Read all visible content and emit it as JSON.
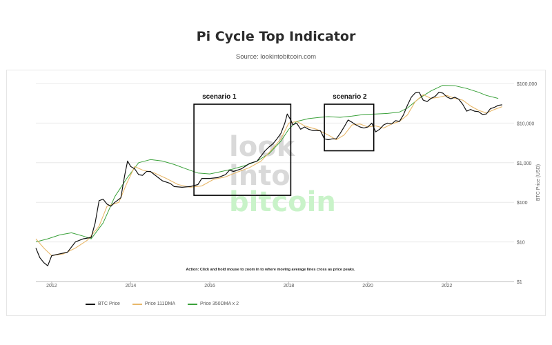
{
  "header": {
    "title": "Pi Cycle Top Indicator",
    "subtitle": "Source: lookintobitcoin.com"
  },
  "watermark": {
    "line1": "look",
    "line2": "into",
    "line3": "bitcoin"
  },
  "annotation": "Action: Click and hold mouse to zoom in to where moving average lines cross as price peaks.",
  "legend": {
    "btc": "BTC Price",
    "ma111": "Price 111DMA",
    "ma350": "Price 350DMA x 2"
  },
  "colors": {
    "btc": "#111111",
    "ma111": "#e8b86a",
    "ma350": "#3aa13a",
    "grid": "#e8e8e8",
    "watermark_grey": "#d9d9d9",
    "watermark_green": "#c9f3c9"
  },
  "chart_data": {
    "type": "line",
    "title": "Pi Cycle Top Indicator",
    "ylabel": "BTC Price (USD)",
    "xlabel": "",
    "yscale": "log",
    "xlim": [
      2011.6,
      2023.7
    ],
    "ylim": [
      1,
      100000
    ],
    "x_ticks": [
      2012,
      2014,
      2016,
      2018,
      2020,
      2022
    ],
    "y_ticks": [
      {
        "value": 1,
        "label": "$1"
      },
      {
        "value": 10,
        "label": "$10"
      },
      {
        "value": 100,
        "label": "$100"
      },
      {
        "value": 1000,
        "label": "$1,000"
      },
      {
        "value": 10000,
        "label": "$10,000"
      },
      {
        "value": 100000,
        "label": "$100,000"
      }
    ],
    "grid": true,
    "legend_position": "bottom-left",
    "series": [
      {
        "name": "BTC Price",
        "x": [
          2011.6,
          2011.7,
          2011.8,
          2011.9,
          2012.0,
          2012.2,
          2012.4,
          2012.6,
          2012.8,
          2013.0,
          2013.1,
          2013.2,
          2013.3,
          2013.4,
          2013.5,
          2013.6,
          2013.75,
          2013.85,
          2013.92,
          2014.0,
          2014.1,
          2014.2,
          2014.3,
          2014.4,
          2014.5,
          2014.6,
          2014.8,
          2015.0,
          2015.1,
          2015.3,
          2015.5,
          2015.7,
          2015.8,
          2016.0,
          2016.2,
          2016.4,
          2016.5,
          2016.6,
          2016.8,
          2017.0,
          2017.2,
          2017.4,
          2017.5,
          2017.6,
          2017.7,
          2017.8,
          2017.9,
          2017.96,
          2018.05,
          2018.1,
          2018.2,
          2018.3,
          2018.4,
          2018.5,
          2018.6,
          2018.7,
          2018.8,
          2018.9,
          2019.0,
          2019.1,
          2019.2,
          2019.3,
          2019.4,
          2019.5,
          2019.6,
          2019.7,
          2019.8,
          2019.9,
          2020.0,
          2020.1,
          2020.2,
          2020.3,
          2020.4,
          2020.5,
          2020.6,
          2020.7,
          2020.8,
          2020.9,
          2021.0,
          2021.1,
          2021.2,
          2021.3,
          2021.4,
          2021.5,
          2021.6,
          2021.7,
          2021.8,
          2021.9,
          2022.0,
          2022.1,
          2022.2,
          2022.3,
          2022.4,
          2022.5,
          2022.6,
          2022.7,
          2022.8,
          2022.9,
          2023.0,
          2023.1,
          2023.2,
          2023.3,
          2023.4
        ],
        "values": [
          7,
          4,
          3,
          2.5,
          4.5,
          5,
          5.5,
          10,
          12,
          13,
          30,
          110,
          120,
          90,
          80,
          100,
          130,
          500,
          1100,
          800,
          700,
          500,
          480,
          600,
          600,
          500,
          350,
          300,
          250,
          240,
          250,
          280,
          400,
          400,
          420,
          500,
          650,
          600,
          700,
          950,
          1100,
          2000,
          2500,
          3000,
          4000,
          5500,
          10000,
          17000,
          12000,
          9000,
          10000,
          7000,
          8000,
          7000,
          6500,
          6500,
          6400,
          4000,
          3800,
          4000,
          4000,
          5500,
          8000,
          12000,
          10500,
          9000,
          8000,
          7500,
          8000,
          10000,
          6000,
          7000,
          9000,
          10000,
          9500,
          11500,
          11000,
          16000,
          28000,
          45000,
          58000,
          60000,
          38000,
          35000,
          42000,
          47000,
          60000,
          57000,
          46000,
          41000,
          45000,
          40000,
          30000,
          20000,
          22000,
          20000,
          19500,
          16500,
          17000,
          23000,
          25000,
          28000,
          29000
        ]
      },
      {
        "name": "Price 111DMA",
        "x": [
          2011.6,
          2011.8,
          2012.0,
          2012.3,
          2012.6,
          2012.9,
          2013.2,
          2013.4,
          2013.7,
          2013.9,
          2014.1,
          2014.3,
          2014.6,
          2014.9,
          2015.2,
          2015.5,
          2015.8,
          2016.1,
          2016.4,
          2016.7,
          2017.0,
          2017.3,
          2017.6,
          2017.8,
          2018.0,
          2018.2,
          2018.4,
          2018.7,
          2019.0,
          2019.2,
          2019.4,
          2019.6,
          2019.8,
          2020.0,
          2020.2,
          2020.4,
          2020.6,
          2020.8,
          2021.0,
          2021.2,
          2021.4,
          2021.6,
          2021.8,
          2022.0,
          2022.2,
          2022.4,
          2022.6,
          2022.8,
          2023.0,
          2023.2,
          2023.4
        ],
        "values": [
          12,
          7,
          4.5,
          5,
          7,
          11,
          25,
          80,
          100,
          300,
          800,
          650,
          550,
          400,
          280,
          240,
          260,
          380,
          440,
          580,
          750,
          1100,
          2300,
          4000,
          10000,
          11000,
          8500,
          7000,
          5000,
          3800,
          5000,
          9000,
          9500,
          8000,
          8500,
          7500,
          9500,
          11000,
          16000,
          35000,
          52000,
          42000,
          45000,
          50000,
          42000,
          38000,
          27000,
          21000,
          18000,
          22000,
          26000
        ]
      },
      {
        "name": "Price 350DMA x 2",
        "x": [
          2011.6,
          2011.9,
          2012.2,
          2012.5,
          2012.8,
          2013.0,
          2013.3,
          2013.6,
          2013.9,
          2014.2,
          2014.5,
          2014.8,
          2015.1,
          2015.4,
          2015.7,
          2016.0,
          2016.3,
          2016.6,
          2016.9,
          2017.2,
          2017.5,
          2017.8,
          2018.0,
          2018.2,
          2018.5,
          2018.8,
          2019.0,
          2019.3,
          2019.6,
          2019.9,
          2020.2,
          2020.5,
          2020.8,
          2021.0,
          2021.3,
          2021.6,
          2021.9,
          2022.2,
          2022.5,
          2022.8,
          2023.0,
          2023.3
        ],
        "values": [
          10,
          12,
          15,
          17,
          14,
          12,
          30,
          140,
          400,
          1000,
          1200,
          1100,
          900,
          700,
          550,
          520,
          600,
          700,
          850,
          1100,
          1700,
          3500,
          7000,
          11000,
          13000,
          14000,
          14500,
          14000,
          15000,
          16500,
          17000,
          17500,
          19000,
          24000,
          42000,
          65000,
          90000,
          88000,
          75000,
          60000,
          50000,
          42000
        ]
      }
    ],
    "annotations": [
      {
        "label": "scenario 1",
        "x_range": [
          2015.6,
          2018.05
        ],
        "y_range": [
          150,
          30000
        ]
      },
      {
        "label": "scenario 2",
        "x_range": [
          2018.9,
          2020.15
        ],
        "y_range": [
          2000,
          30000
        ]
      }
    ]
  }
}
